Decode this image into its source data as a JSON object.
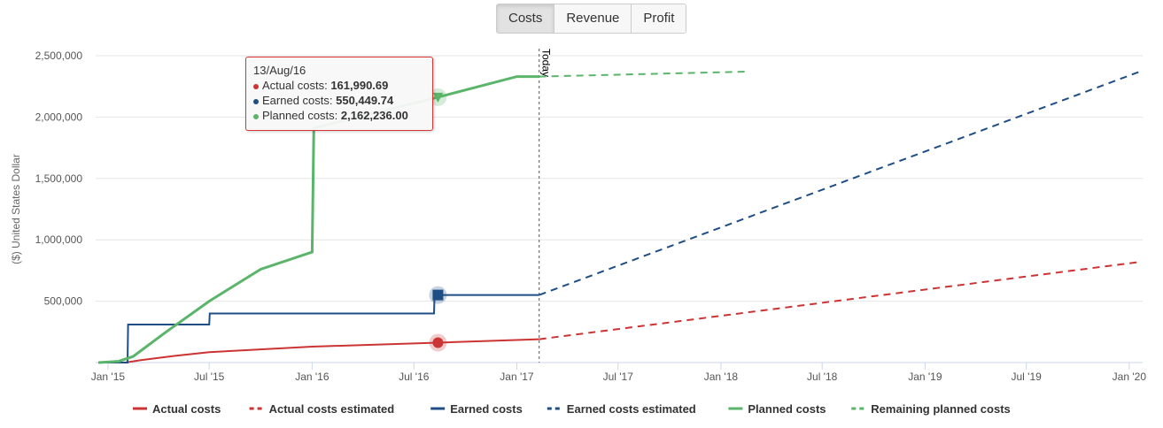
{
  "tabs": [
    {
      "label": "Costs",
      "active": true
    },
    {
      "label": "Revenue",
      "active": false
    },
    {
      "label": "Profit",
      "active": false
    }
  ],
  "tooltip": {
    "date": "13/Aug/16",
    "rows": [
      {
        "label": "Actual costs: ",
        "value": "161,990.69",
        "color": "#c33"
      },
      {
        "label": "Earned costs: ",
        "value": "550,449.74",
        "color": "#1f4e85"
      },
      {
        "label": "Planned costs: ",
        "value": "2,162,236.00",
        "color": "#5ab56a"
      }
    ]
  },
  "chart_data": {
    "type": "line",
    "ylabel": "($) United States Dollar",
    "ylim": [
      0,
      2500000
    ],
    "yticks": [
      {
        "v": 500000,
        "label": "500,000"
      },
      {
        "v": 1000000,
        "label": "1,000,000"
      },
      {
        "v": 1500000,
        "label": "1,500,000"
      },
      {
        "v": 2000000,
        "label": "2,000,000"
      },
      {
        "v": 2500000,
        "label": "2,500,000"
      }
    ],
    "xlim": [
      "2014-12-10",
      "2020-01-25"
    ],
    "xticks": [
      {
        "d": "2015-01-01",
        "label": "Jan '15"
      },
      {
        "d": "2015-07-01",
        "label": "Jul '15"
      },
      {
        "d": "2016-01-01",
        "label": "Jan '16"
      },
      {
        "d": "2016-07-01",
        "label": "Jul '16"
      },
      {
        "d": "2017-01-01",
        "label": "Jan '17"
      },
      {
        "d": "2017-07-01",
        "label": "Jul '17"
      },
      {
        "d": "2018-01-01",
        "label": "Jan '18"
      },
      {
        "d": "2018-07-01",
        "label": "Jul '18"
      },
      {
        "d": "2019-01-01",
        "label": "Jan '19"
      },
      {
        "d": "2019-07-01",
        "label": "Jul '19"
      },
      {
        "d": "2020-01-01",
        "label": "Jan '20"
      }
    ],
    "plotline": {
      "d": "2017-02-10",
      "label": "Today"
    },
    "grid": true,
    "legend_position": "bottom",
    "series": [
      {
        "name": "Actual costs",
        "color": "#c33",
        "dash": false,
        "points": [
          [
            "2014-12-15",
            0
          ],
          [
            "2015-02-01",
            0
          ],
          [
            "2015-03-01",
            20000
          ],
          [
            "2015-05-01",
            55000
          ],
          [
            "2015-07-01",
            85000
          ],
          [
            "2016-01-01",
            130000
          ],
          [
            "2016-08-13",
            161990.69
          ],
          [
            "2017-02-10",
            190000
          ]
        ]
      },
      {
        "name": "Actual costs estimated",
        "color": "#c33",
        "dash": true,
        "points": [
          [
            "2017-02-10",
            190000
          ],
          [
            "2020-01-20",
            820000
          ]
        ]
      },
      {
        "name": "Earned costs",
        "color": "#1f4e85",
        "dash": false,
        "points": [
          [
            "2014-12-15",
            0
          ],
          [
            "2015-02-05",
            0
          ],
          [
            "2015-02-06",
            310000
          ],
          [
            "2015-07-01",
            310000
          ],
          [
            "2015-07-02",
            400000
          ],
          [
            "2016-08-06",
            400000
          ],
          [
            "2016-08-07",
            550449.74
          ],
          [
            "2017-02-10",
            550449.74
          ]
        ]
      },
      {
        "name": "Earned costs estimated",
        "color": "#1f4e85",
        "dash": true,
        "points": [
          [
            "2017-02-10",
            550449.74
          ],
          [
            "2020-01-20",
            2370000
          ]
        ]
      },
      {
        "name": "Planned costs",
        "color": "#5ab56a",
        "dash": false,
        "points": [
          [
            "2014-12-15",
            0
          ],
          [
            "2015-01-20",
            10000
          ],
          [
            "2015-02-15",
            50000
          ],
          [
            "2015-04-15",
            250000
          ],
          [
            "2015-07-01",
            500000
          ],
          [
            "2015-10-01",
            760000
          ],
          [
            "2016-01-01",
            900000
          ],
          [
            "2016-01-04",
            1910000
          ],
          [
            "2016-08-13",
            2162236.0
          ],
          [
            "2017-01-01",
            2330000
          ],
          [
            "2017-02-10",
            2330000
          ]
        ]
      },
      {
        "name": "Remaining planned costs",
        "color": "#5ab56a",
        "dash": true,
        "points": [
          [
            "2017-02-10",
            2330000
          ],
          [
            "2018-02-15",
            2370000
          ]
        ]
      }
    ],
    "markers": [
      {
        "series": "Actual costs",
        "d": "2016-08-13",
        "v": 161990.69,
        "shape": "circle"
      },
      {
        "series": "Earned costs",
        "d": "2016-08-13",
        "v": 550449.74,
        "shape": "square"
      },
      {
        "series": "Planned costs",
        "d": "2016-08-13",
        "v": 2162236.0,
        "shape": "triangle-down"
      }
    ]
  }
}
